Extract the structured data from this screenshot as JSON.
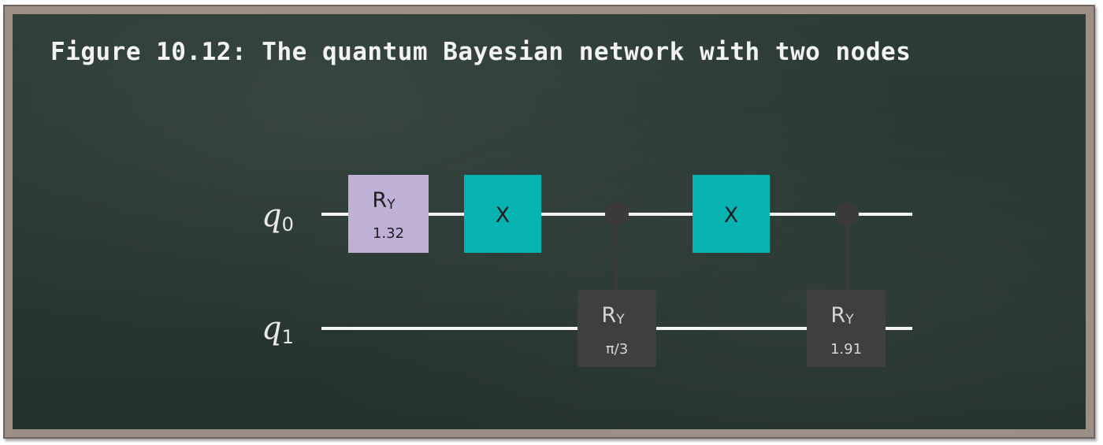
{
  "caption": "Figure 10.12: The quantum Bayesian network with two nodes",
  "circuit": {
    "qubits": [
      {
        "name": "q",
        "index": "0"
      },
      {
        "name": "q",
        "index": "1"
      }
    ],
    "gates": {
      "ry_q0": {
        "name": "R",
        "sub": "Y",
        "param": "1.32"
      },
      "x_first": {
        "name": "X"
      },
      "cry_1": {
        "name": "R",
        "sub": "Y",
        "param": "π/3"
      },
      "x_second": {
        "name": "X"
      },
      "cry_2": {
        "name": "R",
        "sub": "Y",
        "param": "1.91"
      }
    },
    "colors": {
      "wire": "#f4f4f4",
      "ry_fill": "#bfb0d6",
      "x_fill": "#06b3b0",
      "controlled_fill": "#3d403e",
      "control_dot": "#3a3a3a",
      "label_dark": "#1e1e1e",
      "label_light": "#d6d6d6"
    }
  }
}
